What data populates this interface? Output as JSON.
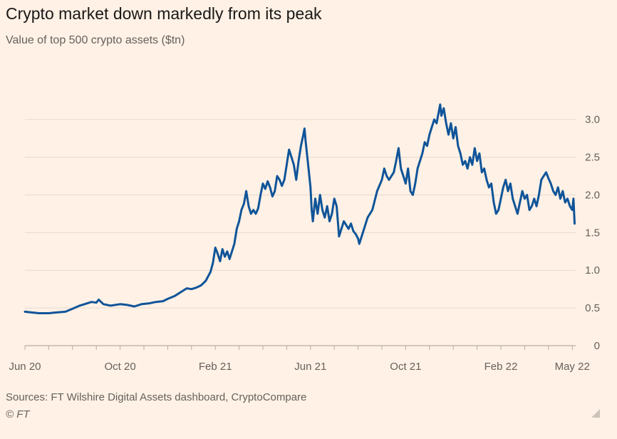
{
  "title": "Crypto market down markedly from its peak",
  "subtitle": "Value of top 500 crypto assets ($tn)",
  "source": "Sources: FT Wilshire Digital Assets dashboard, CryptoCompare",
  "copyright": "© FT",
  "colors": {
    "background": "#fff1e5",
    "line": "#0f5499",
    "grid": "#e6d9ce",
    "text": "#66605c"
  },
  "chart_data": {
    "type": "line",
    "title": "Crypto market down markedly from its peak",
    "subtitle": "Value of top 500 crypto assets ($tn)",
    "xlabel": "",
    "ylabel": "$tn",
    "ylim": [
      0,
      3.3
    ],
    "yticks": [
      0,
      0.5,
      1.0,
      1.5,
      2.0,
      2.5,
      3.0
    ],
    "ytick_labels": [
      "0",
      "0.5",
      "1.0",
      "1.5",
      "2.0",
      "2.5",
      "3.0"
    ],
    "y_axis_side": "right",
    "xlim": [
      0,
      23.1
    ],
    "xtick_labels": [
      {
        "x": 0,
        "label": "Jun 20"
      },
      {
        "x": 4,
        "label": "Oct 20"
      },
      {
        "x": 8,
        "label": "Feb 21"
      },
      {
        "x": 12,
        "label": "Jun 21"
      },
      {
        "x": 16,
        "label": "Oct 21"
      },
      {
        "x": 20,
        "label": "Feb 22"
      },
      {
        "x": 23,
        "label": "May 22"
      }
    ],
    "xminor_ticks": [
      0,
      1,
      2,
      3,
      4,
      5,
      6,
      7,
      8,
      9,
      10,
      11,
      12,
      13,
      14,
      15,
      16,
      17,
      18,
      19,
      20,
      21,
      22,
      23
    ],
    "series": [
      {
        "name": "Value of top 500 crypto assets",
        "x_unit": "months since Jun 2020",
        "points": [
          [
            0,
            0.45
          ],
          [
            0.3,
            0.44
          ],
          [
            0.6,
            0.43
          ],
          [
            1.0,
            0.43
          ],
          [
            1.3,
            0.44
          ],
          [
            1.7,
            0.45
          ],
          [
            2.0,
            0.49
          ],
          [
            2.3,
            0.53
          ],
          [
            2.6,
            0.56
          ],
          [
            2.8,
            0.58
          ],
          [
            3.0,
            0.57
          ],
          [
            3.1,
            0.61
          ],
          [
            3.3,
            0.55
          ],
          [
            3.6,
            0.53
          ],
          [
            4.0,
            0.55
          ],
          [
            4.3,
            0.54
          ],
          [
            4.6,
            0.52
          ],
          [
            4.9,
            0.55
          ],
          [
            5.2,
            0.56
          ],
          [
            5.5,
            0.58
          ],
          [
            5.8,
            0.59
          ],
          [
            6.0,
            0.62
          ],
          [
            6.3,
            0.66
          ],
          [
            6.6,
            0.72
          ],
          [
            6.8,
            0.76
          ],
          [
            7.0,
            0.75
          ],
          [
            7.2,
            0.77
          ],
          [
            7.4,
            0.8
          ],
          [
            7.6,
            0.86
          ],
          [
            7.8,
            0.98
          ],
          [
            7.9,
            1.1
          ],
          [
            8.0,
            1.3
          ],
          [
            8.1,
            1.22
          ],
          [
            8.2,
            1.12
          ],
          [
            8.3,
            1.28
          ],
          [
            8.4,
            1.18
          ],
          [
            8.5,
            1.25
          ],
          [
            8.6,
            1.15
          ],
          [
            8.8,
            1.35
          ],
          [
            8.9,
            1.55
          ],
          [
            9.0,
            1.65
          ],
          [
            9.1,
            1.8
          ],
          [
            9.2,
            1.88
          ],
          [
            9.3,
            2.05
          ],
          [
            9.4,
            1.85
          ],
          [
            9.5,
            1.75
          ],
          [
            9.6,
            1.8
          ],
          [
            9.7,
            1.75
          ],
          [
            9.8,
            1.82
          ],
          [
            9.9,
            2.0
          ],
          [
            10.0,
            2.15
          ],
          [
            10.1,
            2.08
          ],
          [
            10.2,
            2.18
          ],
          [
            10.3,
            2.1
          ],
          [
            10.4,
            1.98
          ],
          [
            10.5,
            2.05
          ],
          [
            10.6,
            2.25
          ],
          [
            10.7,
            2.2
          ],
          [
            10.8,
            2.12
          ],
          [
            10.9,
            2.2
          ],
          [
            11.0,
            2.4
          ],
          [
            11.1,
            2.6
          ],
          [
            11.2,
            2.5
          ],
          [
            11.3,
            2.4
          ],
          [
            11.4,
            2.2
          ],
          [
            11.5,
            2.45
          ],
          [
            11.6,
            2.65
          ],
          [
            11.7,
            2.8
          ],
          [
            11.75,
            2.88
          ],
          [
            11.8,
            2.7
          ],
          [
            11.9,
            2.4
          ],
          [
            12.0,
            2.1
          ],
          [
            12.05,
            1.8
          ],
          [
            12.1,
            1.65
          ],
          [
            12.2,
            1.95
          ],
          [
            12.3,
            1.75
          ],
          [
            12.4,
            2.0
          ],
          [
            12.5,
            1.8
          ],
          [
            12.6,
            1.7
          ],
          [
            12.7,
            1.85
          ],
          [
            12.8,
            1.65
          ],
          [
            12.9,
            1.75
          ],
          [
            13.0,
            1.95
          ],
          [
            13.1,
            1.85
          ],
          [
            13.2,
            1.45
          ],
          [
            13.3,
            1.55
          ],
          [
            13.4,
            1.65
          ],
          [
            13.5,
            1.6
          ],
          [
            13.6,
            1.55
          ],
          [
            13.7,
            1.62
          ],
          [
            13.8,
            1.52
          ],
          [
            13.9,
            1.48
          ],
          [
            14.0,
            1.42
          ],
          [
            14.05,
            1.35
          ],
          [
            14.2,
            1.5
          ],
          [
            14.4,
            1.7
          ],
          [
            14.6,
            1.8
          ],
          [
            14.8,
            2.05
          ],
          [
            15.0,
            2.2
          ],
          [
            15.1,
            2.35
          ],
          [
            15.2,
            2.25
          ],
          [
            15.3,
            2.2
          ],
          [
            15.5,
            2.3
          ],
          [
            15.6,
            2.45
          ],
          [
            15.7,
            2.62
          ],
          [
            15.8,
            2.35
          ],
          [
            15.9,
            2.25
          ],
          [
            16.0,
            2.15
          ],
          [
            16.1,
            2.35
          ],
          [
            16.2,
            2.05
          ],
          [
            16.3,
            2.0
          ],
          [
            16.4,
            2.15
          ],
          [
            16.5,
            2.35
          ],
          [
            16.6,
            2.45
          ],
          [
            16.7,
            2.55
          ],
          [
            16.8,
            2.7
          ],
          [
            16.9,
            2.65
          ],
          [
            17.0,
            2.8
          ],
          [
            17.1,
            2.9
          ],
          [
            17.2,
            3.0
          ],
          [
            17.3,
            2.95
          ],
          [
            17.4,
            3.12
          ],
          [
            17.45,
            3.2
          ],
          [
            17.5,
            3.05
          ],
          [
            17.6,
            3.15
          ],
          [
            17.7,
            2.95
          ],
          [
            17.8,
            2.8
          ],
          [
            17.9,
            2.95
          ],
          [
            18.0,
            2.75
          ],
          [
            18.1,
            2.9
          ],
          [
            18.2,
            2.65
          ],
          [
            18.3,
            2.55
          ],
          [
            18.4,
            2.4
          ],
          [
            18.5,
            2.45
          ],
          [
            18.6,
            2.35
          ],
          [
            18.7,
            2.5
          ],
          [
            18.8,
            2.4
          ],
          [
            18.9,
            2.62
          ],
          [
            19.0,
            2.45
          ],
          [
            19.1,
            2.55
          ],
          [
            19.2,
            2.3
          ],
          [
            19.3,
            2.35
          ],
          [
            19.4,
            2.2
          ],
          [
            19.5,
            2.1
          ],
          [
            19.6,
            2.15
          ],
          [
            19.7,
            1.9
          ],
          [
            19.8,
            1.75
          ],
          [
            19.9,
            1.8
          ],
          [
            20.0,
            1.95
          ],
          [
            20.1,
            2.1
          ],
          [
            20.2,
            2.2
          ],
          [
            20.3,
            2.05
          ],
          [
            20.4,
            2.15
          ],
          [
            20.5,
            1.95
          ],
          [
            20.6,
            1.85
          ],
          [
            20.7,
            1.75
          ],
          [
            20.8,
            1.9
          ],
          [
            20.9,
            2.05
          ],
          [
            21.0,
            1.95
          ],
          [
            21.1,
            2.0
          ],
          [
            21.2,
            1.8
          ],
          [
            21.3,
            1.85
          ],
          [
            21.4,
            1.95
          ],
          [
            21.5,
            1.85
          ],
          [
            21.6,
            2.0
          ],
          [
            21.7,
            2.2
          ],
          [
            21.8,
            2.25
          ],
          [
            21.9,
            2.3
          ],
          [
            22.0,
            2.22
          ],
          [
            22.1,
            2.15
          ],
          [
            22.2,
            2.05
          ],
          [
            22.3,
            2.0
          ],
          [
            22.4,
            2.1
          ],
          [
            22.5,
            1.95
          ],
          [
            22.6,
            2.05
          ],
          [
            22.7,
            1.9
          ],
          [
            22.8,
            1.95
          ],
          [
            22.9,
            1.85
          ],
          [
            23.0,
            1.8
          ],
          [
            23.05,
            1.95
          ],
          [
            23.1,
            1.62
          ]
        ]
      }
    ]
  }
}
